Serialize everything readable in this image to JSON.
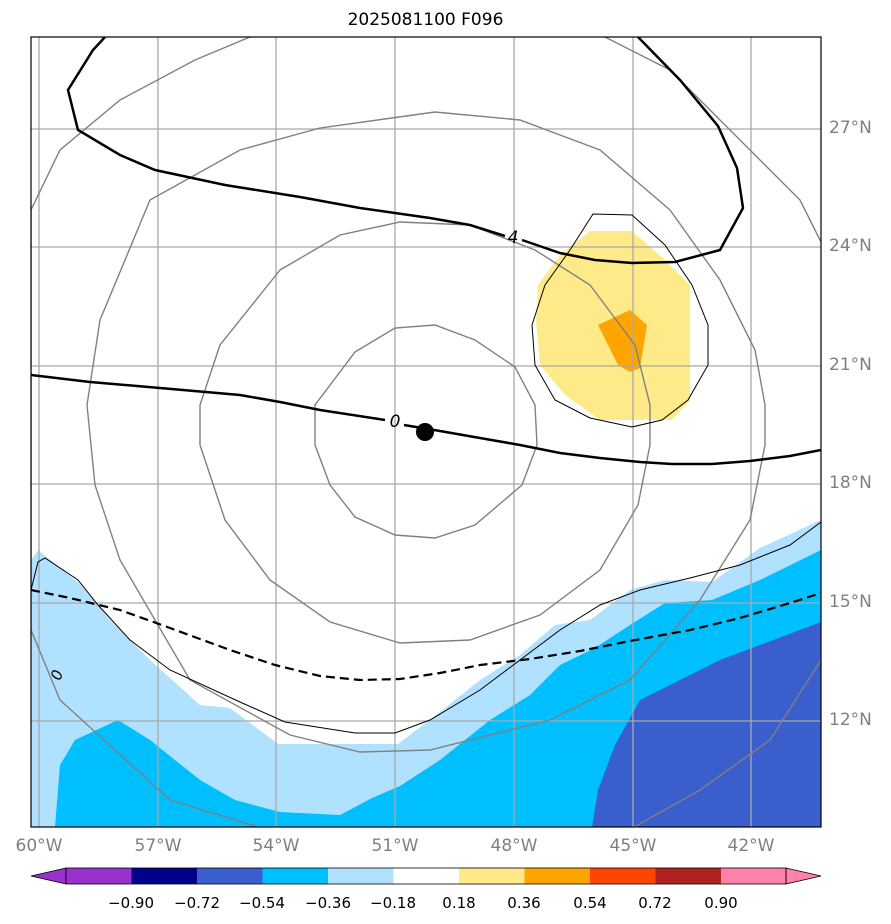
{
  "title": "2025081100 F096",
  "longitude_labels": [
    "60°W",
    "57°W",
    "54°W",
    "51°W",
    "48°W",
    "45°W",
    "42°W"
  ],
  "latitude_labels": [
    "27°N",
    "24°N",
    "21°N",
    "18°N",
    "15°N",
    "12°N"
  ],
  "contour_labels": [
    "4",
    "0",
    "0"
  ],
  "colorbar": {
    "ticks": [
      "−0.90",
      "−0.72",
      "−0.54",
      "−0.36",
      "−0.18",
      "0.18",
      "0.36",
      "0.54",
      "0.72",
      "0.90"
    ],
    "colors": [
      "#9932cc",
      "#00008b",
      "#3a5fcd",
      "#00bfff",
      "#b0e2ff",
      "#ffffff",
      "#ffea8a",
      "#ffa500",
      "#ff4500",
      "#b22222",
      "#ff82ab"
    ]
  },
  "legend_colors": {
    "low_extend": "#9932cc",
    "high_extend": "#ff82ab"
  }
}
